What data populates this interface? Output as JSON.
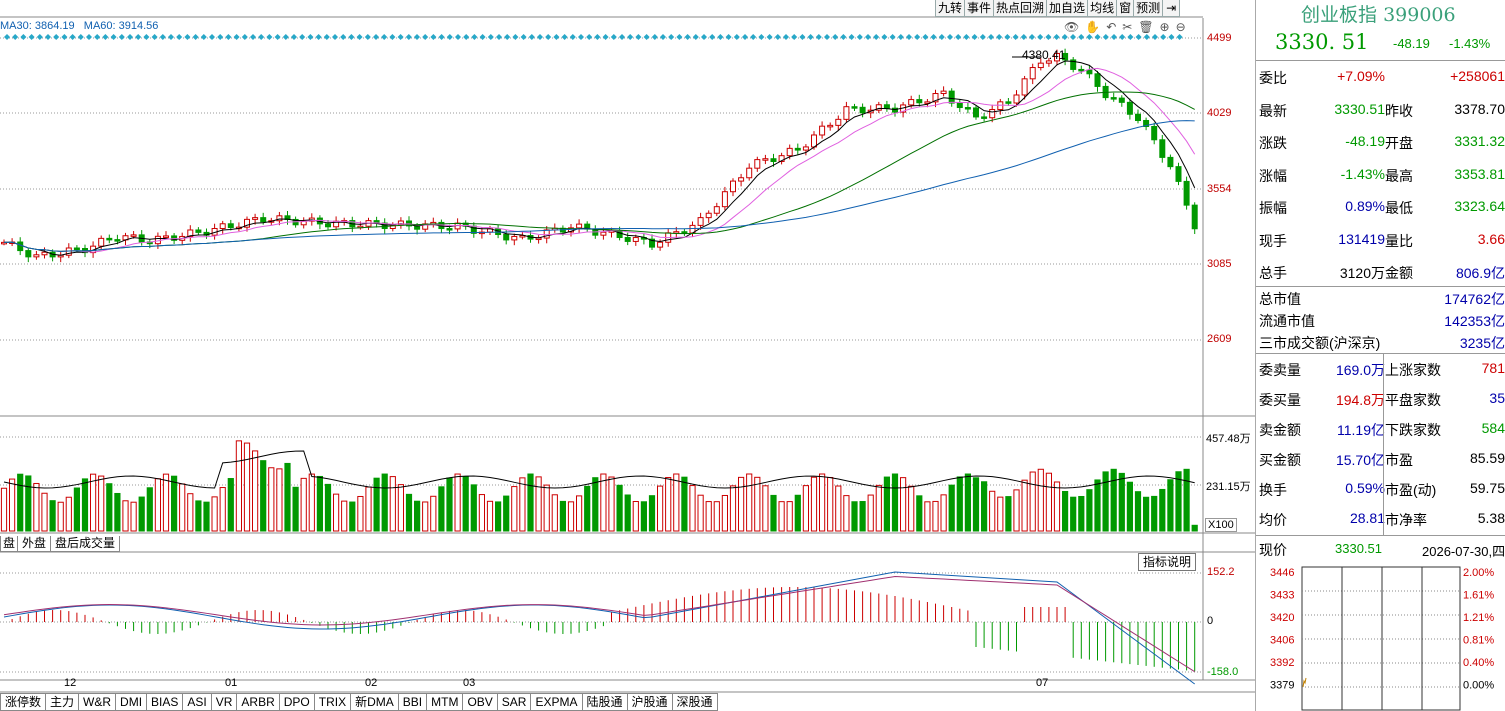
{
  "toolbar": {
    "buttons": [
      "九转",
      "事件",
      "热点回溯",
      "加自选",
      "均线",
      "窗",
      "预测"
    ]
  },
  "ma_legend": {
    "ma30": "MA30: 3864.19",
    "ma60": "MA60: 3914.56"
  },
  "price_axis": [
    "4499",
    "4029",
    "3554",
    "3085",
    "2609"
  ],
  "peak_label": "4380.41",
  "volume_axis": [
    "457.48万",
    "231.15万"
  ],
  "x100_label": "X100",
  "macd_axis": [
    "152.2",
    "0",
    "-158.0"
  ],
  "indicator_button": "指标说明",
  "months": [
    "12",
    "01",
    "02",
    "03",
    "07"
  ],
  "volume_tabs": [
    "盘",
    "外盘",
    "盘后成交量"
  ],
  "bottom_tabs": [
    "涨停数",
    "主力",
    "W&R",
    "DMI",
    "BIAS",
    "ASI",
    "VR",
    "ARBR",
    "DPO",
    "TRIX",
    "新DMA",
    "BBI",
    "MTM",
    "OBV",
    "SAR",
    "EXPMA",
    "陆股通",
    "沪股通",
    "深股通"
  ],
  "quote": {
    "name": "创业板指",
    "code": "399006",
    "price": "3330. 51",
    "change": "-48.19",
    "change_pct": "-1.43%",
    "rows": [
      {
        "l1": "委比",
        "v1": "+7.09%",
        "c1": "red",
        "l2": "",
        "v2": "+258061",
        "c2": "red"
      },
      {
        "l1": "最新",
        "v1": "3330.51",
        "c1": "green",
        "l2": "昨收",
        "v2": "3378.70",
        "c2": "black"
      },
      {
        "l1": "涨跌",
        "v1": "-48.19",
        "c1": "green",
        "l2": "开盘",
        "v2": "3331.32",
        "c2": "green"
      },
      {
        "l1": "涨幅",
        "v1": "-1.43%",
        "c1": "green",
        "l2": "最高",
        "v2": "3353.81",
        "c2": "green"
      },
      {
        "l1": "振幅",
        "v1": "0.89%",
        "c1": "blue",
        "l2": "最低",
        "v2": "3323.64",
        "c2": "green"
      },
      {
        "l1": "现手",
        "v1": "131419",
        "c1": "blue",
        "l2": "量比",
        "v2": "3.66",
        "c2": "red"
      },
      {
        "l1": "总手",
        "v1": "3120万",
        "c1": "black",
        "l2": "金额",
        "v2": "806.9亿",
        "c2": "blue"
      }
    ],
    "market": [
      {
        "label": "总市值",
        "value": "174762亿"
      },
      {
        "label": "流通市值",
        "value": "142353亿"
      },
      {
        "label": "三市成交额(沪深京)",
        "value": "3235亿"
      }
    ],
    "stats": [
      {
        "l1": "委卖量",
        "v1": "169.0万",
        "c1": "blue",
        "l2": "上涨家数",
        "v2": "781",
        "c2": "red"
      },
      {
        "l1": "委买量",
        "v1": "194.8万",
        "c1": "red",
        "l2": "平盘家数",
        "v2": "35",
        "c2": "blue"
      },
      {
        "l1": "卖金额",
        "v1": "11.19亿",
        "c1": "blue",
        "l2": "下跌家数",
        "v2": "584",
        "c2": "green"
      },
      {
        "l1": "买金额",
        "v1": "15.70亿",
        "c1": "blue",
        "l2": "市盈",
        "v2": "85.59",
        "c2": "black"
      },
      {
        "l1": "换手",
        "v1": "0.59%",
        "c1": "blue",
        "l2": "市盈(动)",
        "v2": "59.75",
        "c2": "black"
      },
      {
        "l1": "均价",
        "v1": "28.81",
        "c1": "blue",
        "l2": "市净率",
        "v2": "5.38",
        "c2": "black"
      }
    ],
    "current_label": "现价",
    "current_value": "3330.51",
    "date": "2026-07-30,四",
    "mini_left": [
      "3446",
      "3433",
      "3420",
      "3406",
      "3392",
      "3379"
    ],
    "mini_right": [
      "2.00%",
      "1.61%",
      "1.21%",
      "0.81%",
      "0.40%",
      "0.00%"
    ]
  },
  "colors": {
    "up": "#cc0000",
    "down": "#009900",
    "bg": "#ffffff",
    "grid": "#c8c8c8",
    "ma_short": "#000000",
    "ma_mid": "#e060e0",
    "ma_long": "#007000",
    "ma_longer": "#1060b0",
    "title_green": "#3aa07a"
  }
}
